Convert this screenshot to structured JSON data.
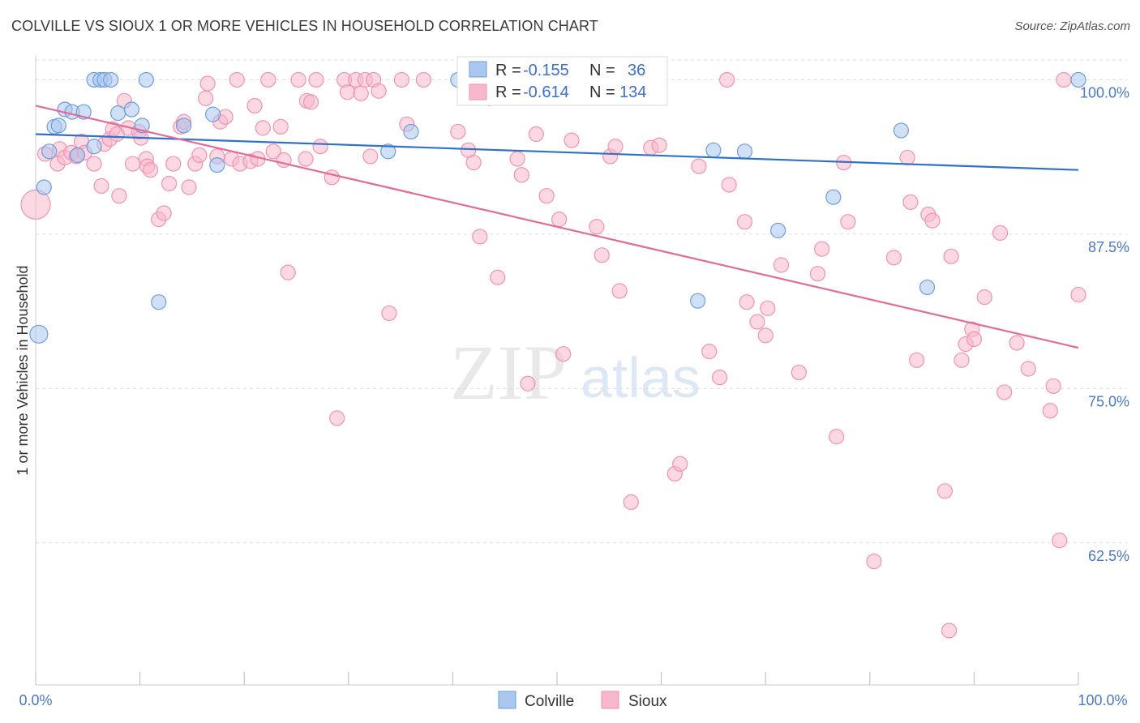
{
  "header": {
    "title": "COLVILLE VS SIOUX 1 OR MORE VEHICLES IN HOUSEHOLD CORRELATION CHART",
    "source": "Source: ZipAtlas.com"
  },
  "watermark": {
    "zip": "ZIP",
    "atlas": "atlas"
  },
  "colors": {
    "colville_fill": "#a9c7ef",
    "colville_stroke": "#6f9ddb",
    "colville_line": "#2f72cc",
    "sioux_fill": "#f7b8cb",
    "sioux_stroke": "#ef93b0",
    "sioux_line": "#e36b97",
    "axis_text": "#4a78c8",
    "grid": "#dddddd"
  },
  "legend_box": {
    "rows": [
      {
        "r_label": "R = ",
        "r_value": "-0.155",
        "n_label": "N = ",
        "n_value": "36"
      },
      {
        "r_label": "R = ",
        "r_value": "-0.614",
        "n_label": "N = ",
        "n_value": "134"
      }
    ]
  },
  "bottom_legend": [
    "Colville",
    "Sioux"
  ],
  "chart_data": {
    "type": "scatter",
    "title": "COLVILLE VS SIOUX 1 OR MORE VEHICLES IN HOUSEHOLD CORRELATION CHART",
    "xlabel": "",
    "ylabel": "1 or more Vehicles in Household",
    "xlim": [
      0,
      100
    ],
    "ylim": [
      51,
      102
    ],
    "x_tick_labels": [
      "0.0%",
      "100.0%"
    ],
    "y_ticks": [
      62.5,
      75.0,
      87.5,
      100.0
    ],
    "y_tick_labels": [
      "62.5%",
      "75.0%",
      "87.5%",
      "100.0%"
    ],
    "grid": true,
    "legend_position": "top-center",
    "series": [
      {
        "name": "Colville",
        "r": -0.155,
        "n": 36,
        "trend": {
          "x": [
            0,
            100
          ],
          "y": [
            95.6,
            92.7
          ]
        },
        "points": [
          [
            0.3,
            79.4,
            11
          ],
          [
            0.8,
            91.3,
            9
          ],
          [
            1.3,
            94.2,
            9
          ],
          [
            1.8,
            96.2,
            9
          ],
          [
            2.2,
            96.3,
            9
          ],
          [
            2.8,
            97.6,
            9
          ],
          [
            3.5,
            97.4,
            9
          ],
          [
            4.0,
            93.9,
            9
          ],
          [
            4.6,
            97.4,
            9
          ],
          [
            5.6,
            94.6,
            9
          ],
          [
            5.6,
            100.0,
            9
          ],
          [
            6.2,
            100.0,
            9
          ],
          [
            6.6,
            100.0,
            9
          ],
          [
            7.2,
            100.0,
            9
          ],
          [
            7.9,
            97.3,
            9
          ],
          [
            9.2,
            97.6,
            9
          ],
          [
            10.2,
            96.3,
            9
          ],
          [
            10.6,
            100.0,
            9
          ],
          [
            11.8,
            82.0,
            9
          ],
          [
            14.2,
            96.3,
            9
          ],
          [
            17.0,
            97.2,
            9
          ],
          [
            17.4,
            93.1,
            9
          ],
          [
            33.8,
            94.2,
            9
          ],
          [
            36.0,
            95.8,
            9
          ],
          [
            40.5,
            100.0,
            9
          ],
          [
            43.5,
            98.5,
            9
          ],
          [
            45.0,
            100.0,
            9
          ],
          [
            47.5,
            100.0,
            9
          ],
          [
            63.5,
            82.1,
            9
          ],
          [
            65.0,
            94.3,
            9
          ],
          [
            68.0,
            94.2,
            9
          ],
          [
            71.2,
            87.8,
            9
          ],
          [
            76.5,
            90.5,
            9
          ],
          [
            83.0,
            95.9,
            9
          ],
          [
            85.5,
            83.2,
            9
          ],
          [
            100.0,
            100.0,
            9
          ]
        ]
      },
      {
        "name": "Sioux",
        "r": -0.614,
        "n": 134,
        "trend": {
          "x": [
            0,
            100
          ],
          "y": [
            97.9,
            78.3
          ]
        },
        "points": [
          [
            0.0,
            89.9,
            18
          ],
          [
            0.9,
            94.0,
            9
          ],
          [
            2.1,
            93.2,
            9
          ],
          [
            2.3,
            94.4,
            9
          ],
          [
            2.8,
            93.7,
            9
          ],
          [
            3.4,
            94.1,
            9
          ],
          [
            3.9,
            93.8,
            9
          ],
          [
            4.4,
            95.0,
            9
          ],
          [
            4.7,
            94.1,
            9
          ],
          [
            5.6,
            93.2,
            9
          ],
          [
            6.3,
            91.4,
            9
          ],
          [
            6.6,
            94.8,
            9
          ],
          [
            7.1,
            95.2,
            9
          ],
          [
            7.4,
            96.0,
            9
          ],
          [
            7.8,
            95.6,
            9
          ],
          [
            8.0,
            90.6,
            9
          ],
          [
            8.5,
            98.3,
            9
          ],
          [
            8.9,
            96.1,
            9
          ],
          [
            9.3,
            93.2,
            9
          ],
          [
            9.9,
            95.8,
            9
          ],
          [
            10.1,
            95.3,
            9
          ],
          [
            10.6,
            93.6,
            9
          ],
          [
            10.7,
            93.0,
            9
          ],
          [
            11.0,
            92.7,
            9
          ],
          [
            11.8,
            88.7,
            9
          ],
          [
            12.3,
            89.2,
            9
          ],
          [
            12.8,
            91.6,
            9
          ],
          [
            13.2,
            93.2,
            9
          ],
          [
            13.9,
            96.2,
            9
          ],
          [
            14.2,
            96.6,
            9
          ],
          [
            14.7,
            91.3,
            9
          ],
          [
            15.3,
            93.2,
            9
          ],
          [
            15.7,
            93.9,
            9
          ],
          [
            16.3,
            98.5,
            9
          ],
          [
            16.5,
            99.7,
            9
          ],
          [
            17.4,
            93.8,
            9
          ],
          [
            17.7,
            96.6,
            9
          ],
          [
            18.2,
            97.0,
            9
          ],
          [
            18.8,
            93.6,
            9
          ],
          [
            19.3,
            100.0,
            9
          ],
          [
            19.6,
            93.2,
            9
          ],
          [
            20.6,
            93.4,
            9
          ],
          [
            21.0,
            97.9,
            9
          ],
          [
            21.3,
            93.6,
            9
          ],
          [
            21.8,
            96.1,
            9
          ],
          [
            22.3,
            100.0,
            9
          ],
          [
            22.8,
            94.2,
            9
          ],
          [
            23.5,
            96.2,
            9
          ],
          [
            23.8,
            93.5,
            9
          ],
          [
            24.2,
            84.4,
            9
          ],
          [
            25.2,
            100.0,
            9
          ],
          [
            25.9,
            93.6,
            9
          ],
          [
            26.0,
            98.3,
            9
          ],
          [
            26.4,
            98.2,
            9
          ],
          [
            26.9,
            100.0,
            9
          ],
          [
            27.3,
            94.6,
            9
          ],
          [
            28.4,
            92.1,
            9
          ],
          [
            28.9,
            72.6,
            9
          ],
          [
            29.6,
            100.0,
            9
          ],
          [
            29.9,
            99.0,
            9
          ],
          [
            30.7,
            100.0,
            9
          ],
          [
            31.2,
            98.9,
            9
          ],
          [
            31.6,
            100.0,
            9
          ],
          [
            32.1,
            93.8,
            9
          ],
          [
            32.4,
            100.0,
            9
          ],
          [
            32.9,
            99.1,
            9
          ],
          [
            33.9,
            81.1,
            9
          ],
          [
            35.1,
            100.0,
            9
          ],
          [
            35.6,
            96.4,
            9
          ],
          [
            37.2,
            100.0,
            9
          ],
          [
            40.5,
            95.8,
            9
          ],
          [
            41.5,
            94.3,
            9
          ],
          [
            42.0,
            93.3,
            9
          ],
          [
            42.6,
            87.3,
            9
          ],
          [
            44.3,
            84.0,
            9
          ],
          [
            46.2,
            93.6,
            9
          ],
          [
            46.6,
            92.3,
            9
          ],
          [
            47.2,
            75.4,
            9
          ],
          [
            48.0,
            95.6,
            9
          ],
          [
            49.0,
            90.6,
            9
          ],
          [
            50.2,
            88.7,
            9
          ],
          [
            50.6,
            77.8,
            9
          ],
          [
            51.4,
            95.1,
            9
          ],
          [
            53.8,
            88.1,
            9
          ],
          [
            54.3,
            85.8,
            9
          ],
          [
            55.1,
            93.8,
            9
          ],
          [
            55.6,
            94.6,
            9
          ],
          [
            56.0,
            82.9,
            9
          ],
          [
            57.1,
            65.8,
            9
          ],
          [
            59.0,
            94.5,
            9
          ],
          [
            59.8,
            94.7,
            9
          ],
          [
            61.3,
            68.1,
            9
          ],
          [
            61.8,
            68.9,
            9
          ],
          [
            63.6,
            93.0,
            9
          ],
          [
            64.6,
            78.0,
            9
          ],
          [
            65.6,
            75.9,
            9
          ],
          [
            66.3,
            100.0,
            9
          ],
          [
            66.5,
            91.5,
            9
          ],
          [
            68.0,
            88.5,
            9
          ],
          [
            68.2,
            82.0,
            9
          ],
          [
            69.2,
            80.4,
            9
          ],
          [
            70.0,
            79.3,
            9
          ],
          [
            70.2,
            81.5,
            9
          ],
          [
            71.5,
            85.0,
            9
          ],
          [
            73.2,
            76.3,
            9
          ],
          [
            75.0,
            84.3,
            9
          ],
          [
            75.4,
            86.3,
            9
          ],
          [
            76.8,
            71.1,
            9
          ],
          [
            77.5,
            93.3,
            9
          ],
          [
            77.9,
            88.5,
            9
          ],
          [
            80.4,
            61.0,
            9
          ],
          [
            82.3,
            85.6,
            9
          ],
          [
            83.6,
            93.7,
            9
          ],
          [
            83.9,
            90.1,
            9
          ],
          [
            84.5,
            77.3,
            9
          ],
          [
            85.6,
            89.1,
            9
          ],
          [
            86.0,
            88.6,
            9
          ],
          [
            87.2,
            66.7,
            9
          ],
          [
            87.6,
            55.4,
            9
          ],
          [
            87.8,
            85.7,
            9
          ],
          [
            88.8,
            77.3,
            9
          ],
          [
            89.2,
            78.6,
            9
          ],
          [
            89.8,
            79.8,
            9
          ],
          [
            90.0,
            79.0,
            9
          ],
          [
            91.0,
            82.4,
            9
          ],
          [
            92.5,
            87.6,
            9
          ],
          [
            92.9,
            74.7,
            9
          ],
          [
            94.1,
            78.7,
            9
          ],
          [
            95.2,
            76.6,
            9
          ],
          [
            97.3,
            73.2,
            9
          ],
          [
            97.6,
            75.2,
            9
          ],
          [
            98.2,
            62.7,
            9
          ],
          [
            98.6,
            100.0,
            9
          ],
          [
            100.0,
            82.6,
            9
          ]
        ]
      }
    ]
  }
}
